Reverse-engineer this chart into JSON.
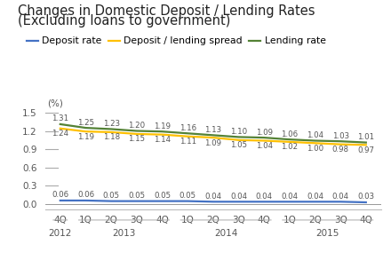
{
  "title_line1": "Changes in Domestic Deposit / Lending Rates",
  "title_line2": "(Excluding loans to government)",
  "ylabel": "(%)",
  "quarter_labels": [
    "4Q",
    "1Q",
    "2Q",
    "3Q",
    "4Q",
    "1Q",
    "2Q",
    "3Q",
    "4Q",
    "1Q",
    "2Q",
    "3Q",
    "4Q"
  ],
  "year_groups": [
    {
      "label": "2012",
      "start": 0,
      "end": 0
    },
    {
      "label": "2013",
      "start": 1,
      "end": 4
    },
    {
      "label": "2014",
      "start": 5,
      "end": 8
    },
    {
      "label": "2015",
      "start": 9,
      "end": 12
    }
  ],
  "deposit_rate": [
    0.06,
    0.06,
    0.05,
    0.05,
    0.05,
    0.05,
    0.04,
    0.04,
    0.04,
    0.04,
    0.04,
    0.04,
    0.03
  ],
  "lending_rate": [
    1.31,
    1.25,
    1.23,
    1.2,
    1.19,
    1.16,
    1.13,
    1.1,
    1.09,
    1.06,
    1.04,
    1.03,
    1.01
  ],
  "spread": [
    1.24,
    1.19,
    1.18,
    1.15,
    1.14,
    1.11,
    1.09,
    1.05,
    1.04,
    1.02,
    1.0,
    0.98,
    0.97
  ],
  "deposit_color": "#4472c4",
  "lending_color": "#548235",
  "spread_color": "#ffc000",
  "yticks": [
    0,
    0.3,
    0.6,
    0.9,
    1.2,
    1.5
  ],
  "ylim": [
    -0.08,
    1.72
  ],
  "xlim": [
    -0.6,
    12.6
  ],
  "background_color": "#ffffff",
  "title_fontsize": 10.5,
  "data_label_fontsize": 6.2,
  "axis_label_fontsize": 7.5,
  "legend_fontsize": 7.8,
  "ytick_fontsize": 7.5
}
